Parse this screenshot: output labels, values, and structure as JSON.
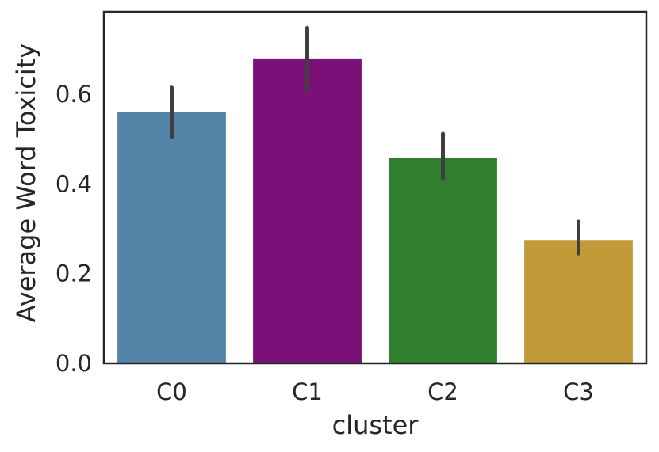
{
  "chart_data": {
    "type": "bar",
    "categories": [
      "C0",
      "C1",
      "C2",
      "C3"
    ],
    "values": [
      0.56,
      0.68,
      0.458,
      0.275
    ],
    "error_low": [
      0.505,
      0.61,
      0.412,
      0.245
    ],
    "error_high": [
      0.615,
      0.748,
      0.512,
      0.316
    ],
    "colors": [
      "#5483a8",
      "#7a1078",
      "#2f7f2f",
      "#c29a37"
    ],
    "error_color": "#3f3f3f",
    "xlabel": "cluster",
    "ylabel": "Average Word Toxicity",
    "ylim": [
      0,
      0.784
    ],
    "yticks": [
      0.0,
      0.2,
      0.4,
      0.6
    ],
    "ytick_labels": [
      "0.0",
      "0.2",
      "0.4",
      "0.6"
    ],
    "grid": false,
    "legend": "none"
  }
}
